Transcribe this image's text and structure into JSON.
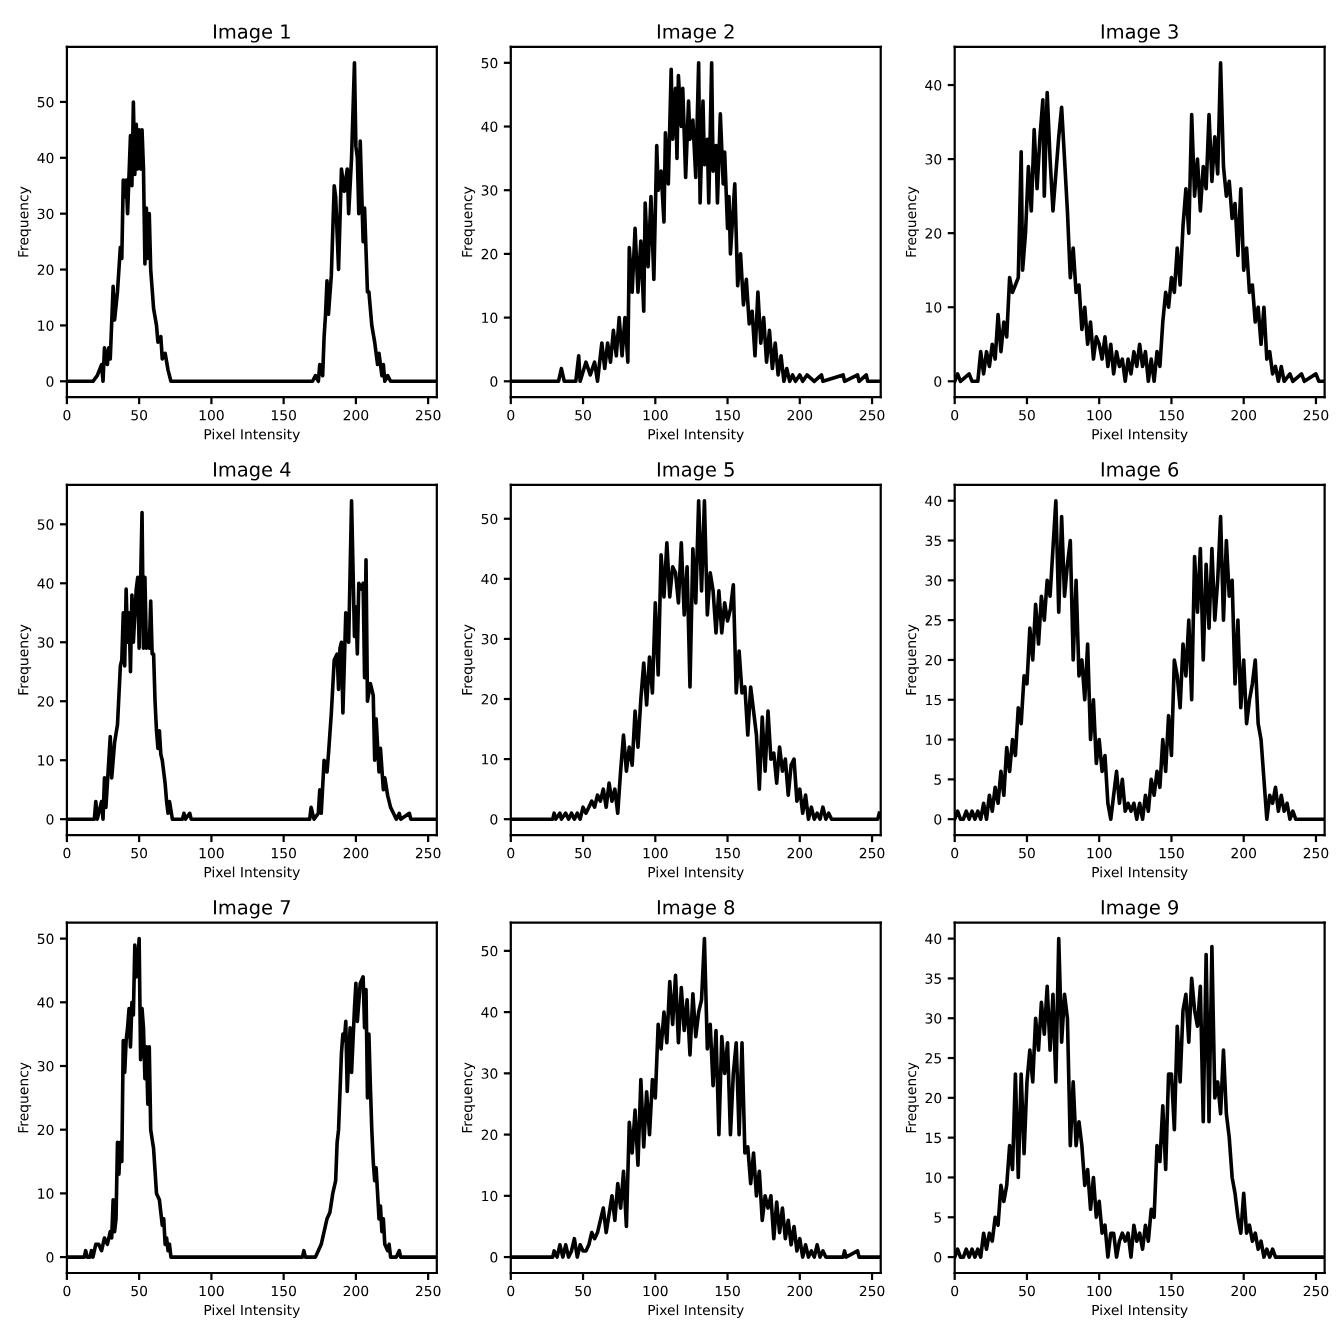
{
  "chart_data": [
    {
      "type": "line",
      "title": "Image 1",
      "xlabel": "Pixel Intensity",
      "ylabel": "Frequency",
      "xlim": [
        0,
        256
      ],
      "ylim": [
        -2.85,
        59.85
      ],
      "xticks": [
        0,
        50,
        100,
        150,
        200,
        250
      ],
      "yticks": [
        0,
        10,
        20,
        30,
        40,
        50
      ],
      "series": [
        {
          "color": "#000000",
          "x": [
            0,
            18,
            21,
            24,
            25,
            26,
            28,
            29,
            30,
            32,
            33,
            35,
            37,
            38,
            39,
            40,
            41,
            42,
            44,
            45,
            46,
            47,
            48,
            49,
            50,
            51,
            52,
            53,
            54,
            55,
            56,
            57,
            58,
            60,
            62,
            63,
            65,
            66,
            68,
            70,
            72,
            78,
            170,
            172,
            174,
            175,
            177,
            178,
            179,
            180,
            181,
            183,
            185,
            186,
            188,
            190,
            192,
            194,
            195,
            197,
            199,
            200,
            201,
            202,
            203,
            205,
            206,
            208,
            209,
            211,
            213,
            215,
            216,
            218,
            219,
            220,
            222,
            224,
            255
          ],
          "values": [
            0,
            0,
            1,
            3,
            0,
            6,
            3,
            6,
            4,
            17,
            11,
            16,
            24,
            22,
            36,
            33,
            36,
            30,
            44,
            35,
            50,
            37,
            46,
            38,
            45,
            38,
            45,
            38,
            21,
            31,
            22,
            30,
            20,
            13,
            10,
            7,
            8,
            4,
            5,
            2,
            0,
            0,
            0,
            1,
            0,
            3,
            1,
            8,
            12,
            18,
            12,
            19,
            35,
            33,
            20,
            38,
            34,
            38,
            30,
            40,
            57,
            42,
            40,
            30,
            43,
            25,
            31,
            16,
            16,
            10,
            7,
            3,
            5,
            1,
            3,
            0,
            1,
            0,
            0
          ]
        }
      ]
    },
    {
      "type": "line",
      "title": "Image 2",
      "xlabel": "Pixel Intensity",
      "ylabel": "Frequency",
      "xlim": [
        0,
        256
      ],
      "ylim": [
        -2.5,
        52.5
      ],
      "xticks": [
        0,
        50,
        100,
        150,
        200,
        250
      ],
      "yticks": [
        0,
        10,
        20,
        30,
        40,
        50
      ],
      "series": [
        {
          "color": "#000000",
          "x": [
            0,
            33,
            35,
            37,
            45,
            47,
            48,
            52,
            55,
            58,
            60,
            63,
            65,
            67,
            69,
            71,
            73,
            75,
            77,
            79,
            81,
            82,
            84,
            86,
            88,
            90,
            92,
            93,
            95,
            97,
            99,
            101,
            102,
            104,
            106,
            107,
            109,
            111,
            112,
            114,
            115,
            116,
            118,
            119,
            121,
            123,
            124,
            126,
            128,
            130,
            131,
            133,
            134,
            136,
            137,
            139,
            140,
            142,
            143,
            145,
            147,
            148,
            150,
            151,
            152,
            155,
            157,
            159,
            161,
            163,
            165,
            167,
            169,
            171,
            173,
            175,
            177,
            179,
            181,
            183,
            185,
            187,
            189,
            191,
            193,
            195,
            197,
            200,
            202,
            205,
            210,
            215,
            216,
            230,
            231,
            240,
            241,
            246,
            247,
            255
          ],
          "values": [
            0,
            0,
            2,
            0,
            0,
            4,
            0,
            3,
            1,
            3,
            0,
            6,
            2,
            6,
            3,
            8,
            4,
            10,
            4,
            10,
            3,
            21,
            14,
            24,
            14,
            22,
            11,
            28,
            18,
            29,
            16,
            37,
            30,
            33,
            25,
            39,
            31,
            49,
            38,
            46,
            35,
            48,
            40,
            46,
            32,
            44,
            38,
            41,
            32,
            50,
            28,
            44,
            34,
            38,
            28,
            50,
            33,
            37,
            28,
            42,
            31,
            36,
            24,
            29,
            20,
            31,
            15,
            20,
            12,
            16,
            9,
            11,
            4,
            14,
            6,
            10,
            3,
            8,
            2,
            6,
            1,
            4,
            0,
            2,
            0,
            1,
            0,
            1,
            0,
            1,
            0,
            1,
            0,
            1,
            0,
            1,
            0,
            1,
            0,
            0
          ]
        }
      ]
    },
    {
      "type": "line",
      "title": "Image 3",
      "xlabel": "Pixel Intensity",
      "ylabel": "Frequency",
      "xlim": [
        0,
        256
      ],
      "ylim": [
        -2.15,
        45.15
      ],
      "xticks": [
        0,
        50,
        100,
        150,
        200,
        250
      ],
      "yticks": [
        0,
        10,
        20,
        30,
        40
      ],
      "series": [
        {
          "color": "#000000",
          "x": [
            0,
            2,
            4,
            10,
            12,
            16,
            18,
            20,
            22,
            24,
            26,
            28,
            30,
            32,
            34,
            36,
            38,
            40,
            42,
            44,
            46,
            47,
            49,
            51,
            53,
            55,
            57,
            59,
            61,
            62,
            64,
            66,
            68,
            70,
            72,
            74,
            76,
            78,
            80,
            82,
            84,
            86,
            88,
            90,
            92,
            94,
            96,
            98,
            100,
            102,
            104,
            106,
            108,
            110,
            112,
            114,
            116,
            118,
            120,
            122,
            124,
            126,
            128,
            130,
            132,
            134,
            136,
            138,
            140,
            142,
            144,
            146,
            148,
            150,
            152,
            154,
            156,
            158,
            160,
            162,
            164,
            166,
            168,
            170,
            172,
            174,
            176,
            178,
            180,
            182,
            184,
            186,
            188,
            190,
            192,
            194,
            196,
            198,
            200,
            202,
            204,
            206,
            208,
            210,
            212,
            214,
            216,
            218,
            220,
            222,
            224,
            226,
            228,
            232,
            234,
            240,
            242,
            250,
            252,
            255
          ],
          "values": [
            0,
            1,
            0,
            1,
            0,
            0,
            4,
            1,
            4,
            2,
            5,
            3,
            9,
            4,
            8,
            6,
            14,
            12,
            13,
            14,
            31,
            15,
            20,
            29,
            23,
            34,
            26,
            33,
            38,
            25,
            39,
            30,
            23,
            28,
            33,
            37,
            30,
            23,
            14,
            18,
            12,
            13,
            7,
            10,
            5,
            8,
            3,
            6,
            5,
            3,
            6,
            2,
            5,
            1,
            4,
            2,
            3,
            0,
            3,
            1,
            4,
            2,
            5,
            2,
            4,
            0,
            3,
            0,
            4,
            2,
            8,
            12,
            10,
            14,
            12,
            18,
            13,
            21,
            26,
            20,
            36,
            25,
            30,
            23,
            29,
            26,
            36,
            27,
            33,
            28,
            43,
            29,
            25,
            27,
            22,
            24,
            17,
            26,
            15,
            18,
            12,
            13,
            8,
            10,
            5,
            10,
            3,
            4,
            1,
            2,
            0,
            2,
            0,
            1,
            0,
            1,
            0,
            1,
            0,
            0
          ]
        }
      ]
    },
    {
      "type": "line",
      "title": "Image 4",
      "xlabel": "Pixel Intensity",
      "ylabel": "Frequency",
      "xlim": [
        0,
        256
      ],
      "ylim": [
        -2.7,
        56.7
      ],
      "xticks": [
        0,
        50,
        100,
        150,
        200,
        250
      ],
      "yticks": [
        0,
        10,
        20,
        30,
        40,
        50
      ],
      "series": [
        {
          "color": "#000000",
          "x": [
            0,
            19,
            20,
            21,
            22,
            24,
            25,
            26,
            27,
            30,
            31,
            33,
            35,
            37,
            38,
            39,
            40,
            41,
            42,
            43,
            44,
            45,
            46,
            48,
            49,
            50,
            51,
            52,
            53,
            54,
            55,
            56,
            57,
            58,
            59,
            60,
            61,
            62,
            63,
            64,
            65,
            66,
            68,
            69,
            70,
            71,
            73,
            80,
            81,
            82,
            85,
            86,
            168,
            169,
            171,
            174,
            175,
            176,
            178,
            180,
            181,
            183,
            185,
            187,
            188,
            189,
            190,
            191,
            193,
            195,
            197,
            199,
            200,
            201,
            202,
            204,
            205,
            206,
            207,
            208,
            210,
            212,
            213,
            214,
            216,
            217,
            219,
            220,
            222,
            224,
            226,
            228,
            230,
            231,
            237,
            238,
            255
          ],
          "values": [
            0,
            0,
            3,
            0,
            1,
            3,
            0,
            7,
            2,
            14,
            7,
            13,
            16,
            26,
            27,
            35,
            26,
            39,
            30,
            35,
            25,
            38,
            30,
            39,
            41,
            29,
            40,
            52,
            29,
            41,
            29,
            30,
            29,
            37,
            28,
            28,
            20,
            15,
            12,
            15,
            11,
            10,
            6,
            3,
            1,
            3,
            0,
            0,
            1,
            0,
            1,
            0,
            0,
            2,
            0,
            1,
            5,
            1,
            10,
            8,
            11,
            18,
            27,
            28,
            22,
            29,
            30,
            18,
            35,
            30,
            54,
            31,
            36,
            28,
            40,
            39,
            40,
            24,
            44,
            20,
            23,
            21,
            10,
            17,
            8,
            12,
            5,
            7,
            4,
            2,
            1,
            0,
            1,
            0,
            1,
            0,
            0
          ]
        }
      ]
    },
    {
      "type": "line",
      "title": "Image 5",
      "xlabel": "Pixel Intensity",
      "ylabel": "Frequency",
      "xlim": [
        0,
        256
      ],
      "ylim": [
        -2.65,
        55.65
      ],
      "xticks": [
        0,
        50,
        100,
        150,
        200,
        250
      ],
      "yticks": [
        0,
        10,
        20,
        30,
        40,
        50
      ],
      "series": [
        {
          "color": "#000000",
          "x": [
            0,
            29,
            30,
            31,
            34,
            35,
            38,
            40,
            42,
            44,
            46,
            48,
            50,
            52,
            54,
            56,
            58,
            60,
            62,
            64,
            66,
            68,
            70,
            72,
            74,
            76,
            78,
            80,
            82,
            84,
            86,
            88,
            90,
            92,
            94,
            96,
            98,
            100,
            102,
            104,
            106,
            108,
            110,
            112,
            114,
            116,
            118,
            120,
            122,
            124,
            126,
            128,
            130,
            132,
            134,
            136,
            138,
            140,
            142,
            144,
            146,
            148,
            150,
            152,
            154,
            156,
            158,
            160,
            162,
            164,
            166,
            168,
            170,
            172,
            174,
            176,
            178,
            180,
            182,
            184,
            186,
            188,
            190,
            192,
            194,
            196,
            198,
            200,
            202,
            204,
            206,
            208,
            210,
            212,
            214,
            216,
            218,
            220,
            222,
            254,
            255
          ],
          "values": [
            0,
            0,
            1,
            0,
            1,
            0,
            1,
            0,
            1,
            0,
            1,
            0,
            2,
            1,
            2,
            3,
            2,
            4,
            3,
            5,
            2,
            6,
            3,
            5,
            1,
            8,
            14,
            8,
            12,
            9,
            18,
            12,
            20,
            26,
            19,
            27,
            21,
            36,
            24,
            44,
            37,
            46,
            37,
            42,
            41,
            36,
            46,
            34,
            42,
            22,
            45,
            36,
            53,
            38,
            53,
            34,
            41,
            38,
            31,
            38,
            31,
            36,
            33,
            35,
            39,
            21,
            28,
            21,
            22,
            14,
            22,
            18,
            14,
            5,
            17,
            8,
            18,
            10,
            11,
            6,
            12,
            8,
            10,
            4,
            9,
            10,
            3,
            5,
            1,
            4,
            0,
            2,
            0,
            1,
            0,
            2,
            0,
            1,
            0,
            0,
            1
          ]
        }
      ]
    },
    {
      "type": "line",
      "title": "Image 6",
      "xlabel": "Pixel Intensity",
      "ylabel": "Frequency",
      "xlim": [
        0,
        256
      ],
      "ylim": [
        -2,
        42
      ],
      "xticks": [
        0,
        50,
        100,
        150,
        200,
        250
      ],
      "yticks": [
        0,
        5,
        10,
        15,
        20,
        25,
        30,
        35,
        40
      ],
      "series": [
        {
          "color": "#000000",
          "x": [
            0,
            2,
            4,
            6,
            8,
            10,
            12,
            14,
            16,
            18,
            20,
            22,
            24,
            26,
            28,
            30,
            32,
            34,
            36,
            38,
            40,
            42,
            44,
            46,
            48,
            50,
            52,
            54,
            56,
            58,
            60,
            62,
            64,
            66,
            68,
            70,
            72,
            74,
            76,
            78,
            80,
            82,
            84,
            86,
            88,
            90,
            92,
            94,
            96,
            98,
            100,
            102,
            104,
            106,
            108,
            110,
            112,
            114,
            116,
            118,
            120,
            122,
            124,
            126,
            128,
            130,
            132,
            134,
            136,
            138,
            140,
            142,
            144,
            146,
            148,
            150,
            152,
            154,
            156,
            158,
            160,
            162,
            164,
            166,
            168,
            170,
            172,
            174,
            176,
            178,
            180,
            182,
            184,
            186,
            188,
            190,
            192,
            194,
            196,
            198,
            200,
            202,
            204,
            206,
            208,
            210,
            212,
            214,
            216,
            218,
            220,
            222,
            224,
            226,
            228,
            230,
            232,
            234,
            236,
            255
          ],
          "values": [
            0,
            1,
            0,
            0,
            1,
            0,
            1,
            0,
            1,
            0,
            2,
            0,
            3,
            1,
            4,
            2,
            6,
            3,
            9,
            6,
            10,
            8,
            14,
            12,
            18,
            17,
            24,
            20,
            27,
            22,
            28,
            25,
            30,
            28,
            34,
            40,
            26,
            38,
            28,
            32,
            35,
            20,
            30,
            18,
            20,
            15,
            22,
            10,
            15,
            7,
            10,
            6,
            8,
            2,
            0,
            3,
            6,
            2,
            5,
            1,
            2,
            1,
            2,
            0,
            2,
            0,
            3,
            1,
            5,
            3,
            6,
            4,
            10,
            6,
            13,
            8,
            20,
            18,
            14,
            22,
            18,
            25,
            15,
            33,
            26,
            34,
            20,
            32,
            24,
            34,
            25,
            30,
            38,
            25,
            35,
            28,
            30,
            17,
            25,
            14,
            20,
            12,
            15,
            17,
            20,
            12,
            10,
            5,
            0,
            3,
            2,
            4,
            1,
            3,
            1,
            2,
            0,
            1,
            0,
            0
          ]
        }
      ]
    },
    {
      "type": "line",
      "title": "Image 7",
      "xlabel": "Pixel Intensity",
      "ylabel": "Frequency",
      "xlim": [
        0,
        256
      ],
      "ylim": [
        -2.5,
        52.5
      ],
      "xticks": [
        0,
        50,
        100,
        150,
        200,
        250
      ],
      "yticks": [
        0,
        10,
        20,
        30,
        40,
        50
      ],
      "series": [
        {
          "color": "#000000",
          "x": [
            0,
            12,
            13,
            14,
            16,
            17,
            18,
            20,
            22,
            24,
            26,
            28,
            30,
            31,
            32,
            33,
            34,
            35,
            36,
            37,
            38,
            39,
            40,
            41,
            42,
            43,
            44,
            45,
            46,
            47,
            48,
            49,
            50,
            51,
            52,
            53,
            54,
            55,
            56,
            57,
            58,
            60,
            62,
            64,
            66,
            67,
            68,
            69,
            70,
            71,
            72,
            78,
            163,
            164,
            165,
            172,
            174,
            176,
            178,
            180,
            182,
            184,
            186,
            187,
            188,
            189,
            190,
            191,
            192,
            193,
            194,
            196,
            197,
            199,
            200,
            201,
            202,
            203,
            205,
            206,
            207,
            208,
            209,
            210,
            211,
            212,
            213,
            214,
            216,
            217,
            218,
            219,
            220,
            222,
            223,
            224,
            228,
            230,
            231,
            255
          ],
          "values": [
            0,
            0,
            1,
            0,
            0,
            1,
            0,
            2,
            2,
            1,
            3,
            2,
            4,
            3,
            9,
            4,
            6,
            18,
            13,
            18,
            15,
            34,
            29,
            34,
            36,
            39,
            33,
            40,
            38,
            49,
            44,
            46,
            50,
            31,
            39,
            36,
            28,
            33,
            24,
            33,
            20,
            17,
            10,
            9,
            5,
            6,
            2,
            3,
            1,
            2,
            0,
            0,
            0,
            1,
            0,
            0,
            1,
            2,
            4,
            6,
            7,
            10,
            12,
            18,
            20,
            26,
            32,
            35,
            34,
            37,
            26,
            36,
            29,
            39,
            43,
            37,
            40,
            43,
            44,
            36,
            42,
            25,
            35,
            27,
            20,
            15,
            12,
            14,
            6,
            8,
            4,
            6,
            2,
            1,
            2,
            0,
            0,
            1,
            0,
            0
          ]
        }
      ]
    },
    {
      "type": "line",
      "title": "Image 8",
      "xlabel": "Pixel Intensity",
      "ylabel": "Frequency",
      "xlim": [
        0,
        256
      ],
      "ylim": [
        -2.6,
        54.6
      ],
      "xticks": [
        0,
        50,
        100,
        150,
        200,
        250
      ],
      "yticks": [
        0,
        10,
        20,
        30,
        40,
        50
      ],
      "series": [
        {
          "color": "#000000",
          "x": [
            0,
            29,
            30,
            32,
            34,
            36,
            38,
            40,
            42,
            44,
            46,
            48,
            50,
            52,
            54,
            56,
            58,
            60,
            62,
            64,
            66,
            68,
            70,
            72,
            74,
            76,
            78,
            80,
            82,
            84,
            86,
            88,
            90,
            92,
            94,
            96,
            98,
            100,
            102,
            104,
            106,
            108,
            110,
            112,
            114,
            116,
            118,
            120,
            122,
            124,
            126,
            128,
            130,
            132,
            134,
            136,
            138,
            140,
            142,
            144,
            146,
            148,
            150,
            152,
            154,
            156,
            158,
            160,
            162,
            164,
            166,
            168,
            170,
            172,
            174,
            176,
            178,
            180,
            182,
            184,
            186,
            188,
            190,
            192,
            194,
            196,
            198,
            200,
            202,
            204,
            206,
            208,
            210,
            212,
            214,
            216,
            218,
            230,
            231,
            232,
            240,
            241,
            255
          ],
          "values": [
            0,
            0,
            1,
            0,
            2,
            0,
            2,
            0,
            1,
            3,
            0,
            2,
            1,
            1,
            2,
            4,
            3,
            4,
            6,
            8,
            4,
            7,
            10,
            6,
            12,
            8,
            14,
            5,
            22,
            17,
            24,
            15,
            29,
            18,
            27,
            20,
            29,
            26,
            38,
            34,
            40,
            35,
            45,
            38,
            46,
            35,
            44,
            37,
            42,
            33,
            43,
            36,
            40,
            42,
            52,
            34,
            38,
            28,
            37,
            20,
            36,
            30,
            35,
            20,
            30,
            35,
            20,
            35,
            17,
            18,
            12,
            17,
            10,
            14,
            6,
            10,
            8,
            10,
            3,
            9,
            4,
            8,
            3,
            6,
            2,
            5,
            1,
            3,
            0,
            2,
            0,
            1,
            0,
            2,
            0,
            1,
            0,
            0,
            1,
            0,
            1,
            0,
            0
          ]
        }
      ]
    },
    {
      "type": "line",
      "title": "Image 9",
      "xlabel": "Pixel Intensity",
      "ylabel": "Frequency",
      "xlim": [
        0,
        256
      ],
      "ylim": [
        -2,
        42
      ],
      "xticks": [
        0,
        50,
        100,
        150,
        200,
        250
      ],
      "yticks": [
        0,
        5,
        10,
        15,
        20,
        25,
        30,
        35,
        40
      ],
      "series": [
        {
          "color": "#000000",
          "x": [
            0,
            2,
            4,
            6,
            8,
            10,
            12,
            14,
            16,
            18,
            20,
            22,
            24,
            26,
            28,
            30,
            32,
            34,
            36,
            38,
            40,
            42,
            44,
            46,
            48,
            50,
            52,
            54,
            56,
            58,
            60,
            62,
            64,
            66,
            68,
            70,
            72,
            74,
            76,
            78,
            80,
            82,
            84,
            86,
            88,
            90,
            92,
            94,
            96,
            98,
            100,
            102,
            104,
            106,
            108,
            110,
            112,
            114,
            116,
            118,
            120,
            122,
            124,
            126,
            128,
            130,
            132,
            134,
            136,
            138,
            140,
            142,
            144,
            146,
            148,
            150,
            152,
            154,
            156,
            158,
            160,
            162,
            164,
            166,
            168,
            170,
            172,
            174,
            176,
            178,
            180,
            182,
            184,
            186,
            188,
            190,
            192,
            194,
            196,
            198,
            200,
            202,
            204,
            206,
            208,
            210,
            212,
            214,
            216,
            218,
            220,
            222,
            255
          ],
          "values": [
            0,
            1,
            0,
            0,
            1,
            0,
            1,
            0,
            1,
            0,
            3,
            1,
            3,
            2,
            5,
            4,
            9,
            7,
            9,
            14,
            11,
            23,
            10,
            23,
            13,
            22,
            26,
            22,
            30,
            26,
            32,
            28,
            34,
            26,
            33,
            22,
            40,
            27,
            33,
            30,
            14,
            22,
            14,
            17,
            14,
            9,
            11,
            6,
            10,
            5,
            7,
            3,
            4,
            0,
            3,
            3,
            0,
            2,
            3,
            2,
            3,
            0,
            4,
            2,
            3,
            1,
            4,
            2,
            6,
            5,
            14,
            12,
            19,
            11,
            23,
            23,
            16,
            29,
            22,
            31,
            33,
            27,
            35,
            31,
            29,
            34,
            17,
            38,
            17,
            39,
            20,
            22,
            18,
            26,
            18,
            15,
            10,
            8,
            5,
            3,
            8,
            3,
            4,
            2,
            3,
            1,
            2,
            0,
            1,
            0,
            1,
            0,
            0
          ]
        }
      ]
    }
  ]
}
